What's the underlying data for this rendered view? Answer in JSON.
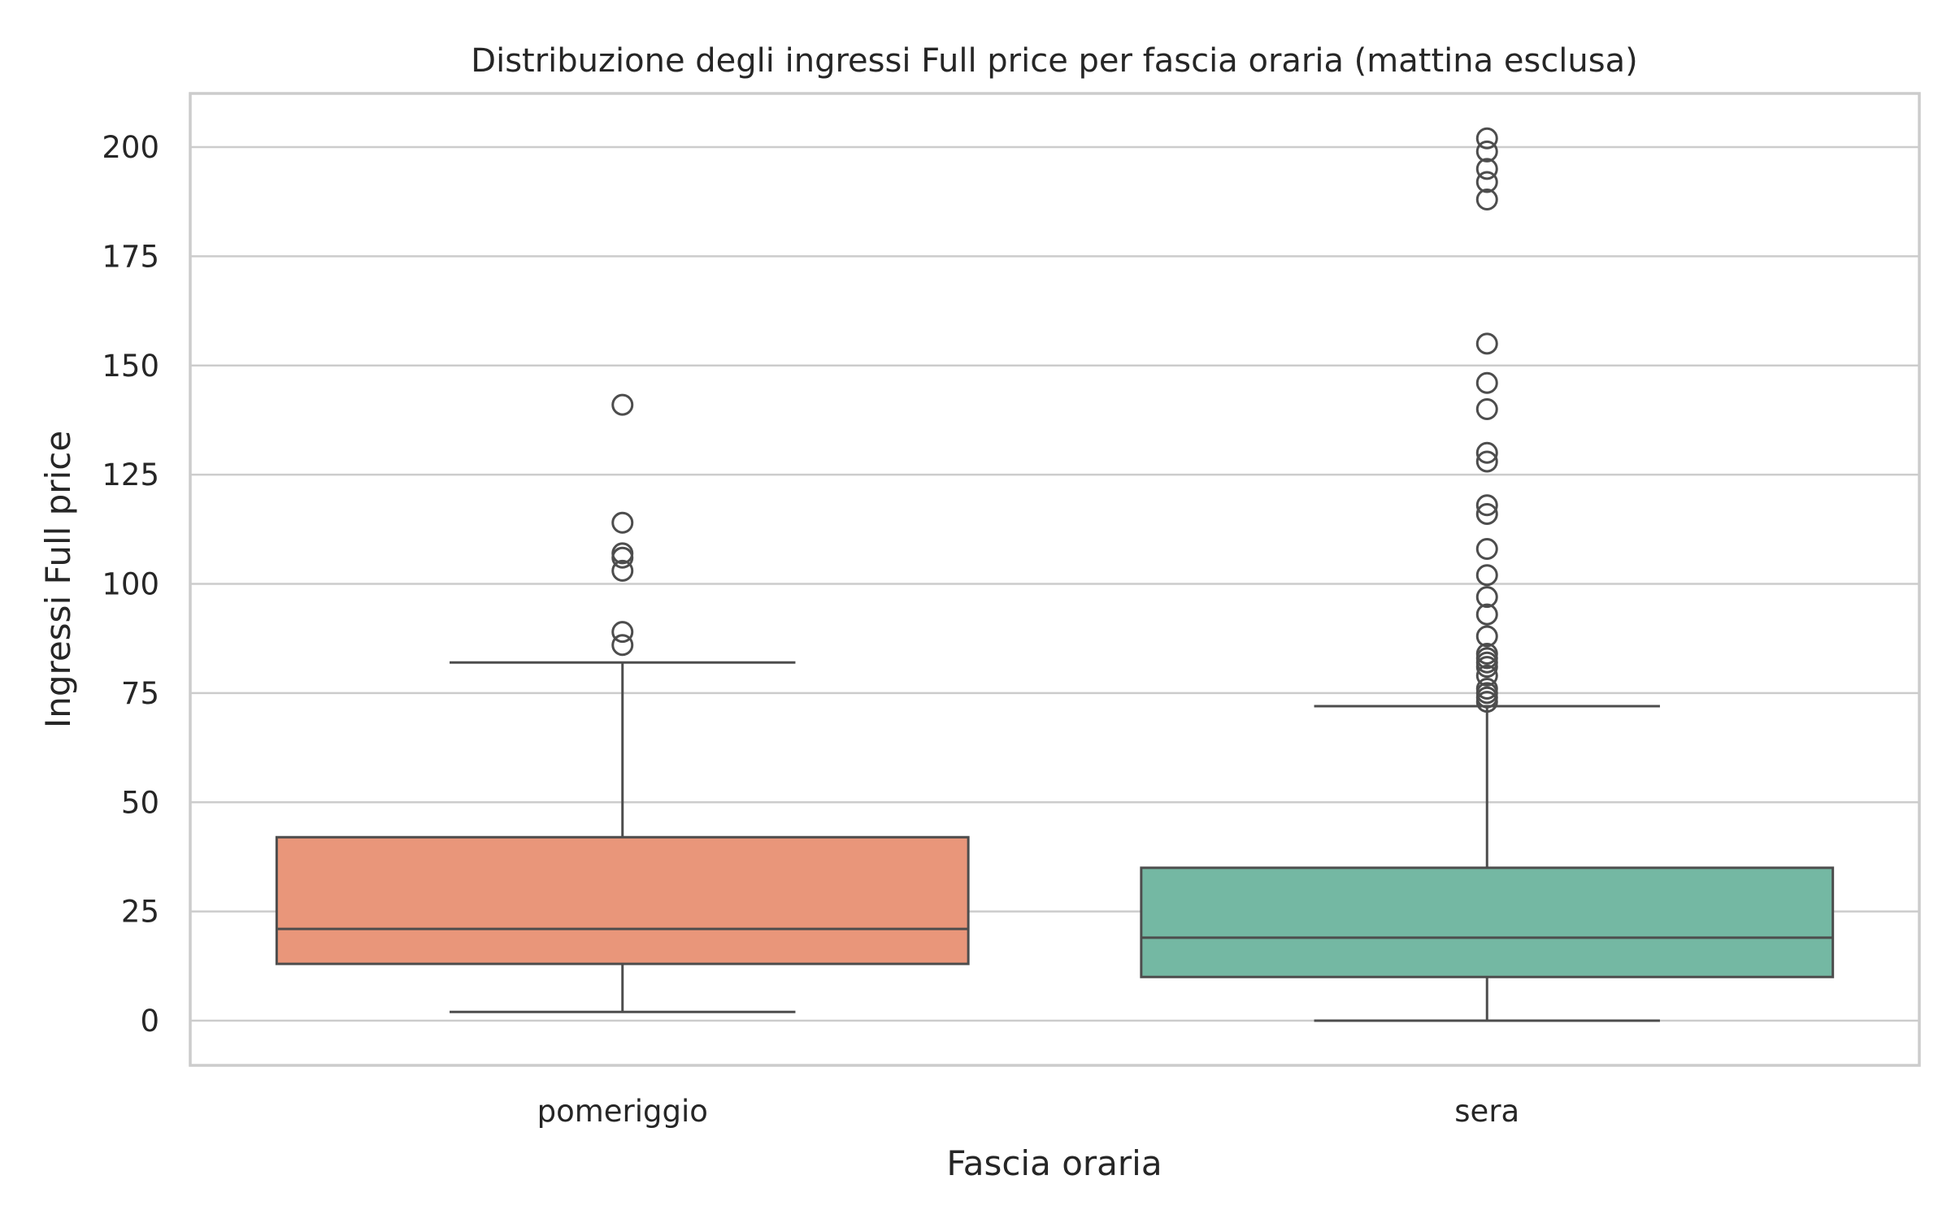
{
  "chart_data": {
    "type": "box",
    "title": "Distribuzione degli ingressi Full price per fascia oraria (mattina esclusa)",
    "xlabel": "Fascia oraria",
    "ylabel": "Ingressi Full price",
    "ylim": [
      -10,
      212
    ],
    "yticks": [
      0,
      25,
      50,
      75,
      100,
      125,
      150,
      175,
      200
    ],
    "grid": true,
    "categories": [
      "pomeriggio",
      "sera"
    ],
    "boxes": [
      {
        "category": "pomeriggio",
        "color": "#e9967a",
        "whisker_low": 2,
        "q1": 13,
        "median": 21,
        "q3": 42,
        "whisker_high": 82,
        "outliers": [
          86,
          89,
          103,
          106,
          107,
          114,
          141
        ]
      },
      {
        "category": "sera",
        "color": "#74b8a3",
        "whisker_low": 0,
        "q1": 10,
        "median": 19,
        "q3": 35,
        "whisker_high": 72,
        "outliers": [
          73,
          74,
          75,
          76,
          79,
          81,
          82,
          83,
          84,
          88,
          93,
          97,
          102,
          108,
          116,
          118,
          128,
          130,
          140,
          146,
          155,
          188,
          192,
          195,
          199,
          202
        ]
      }
    ]
  }
}
